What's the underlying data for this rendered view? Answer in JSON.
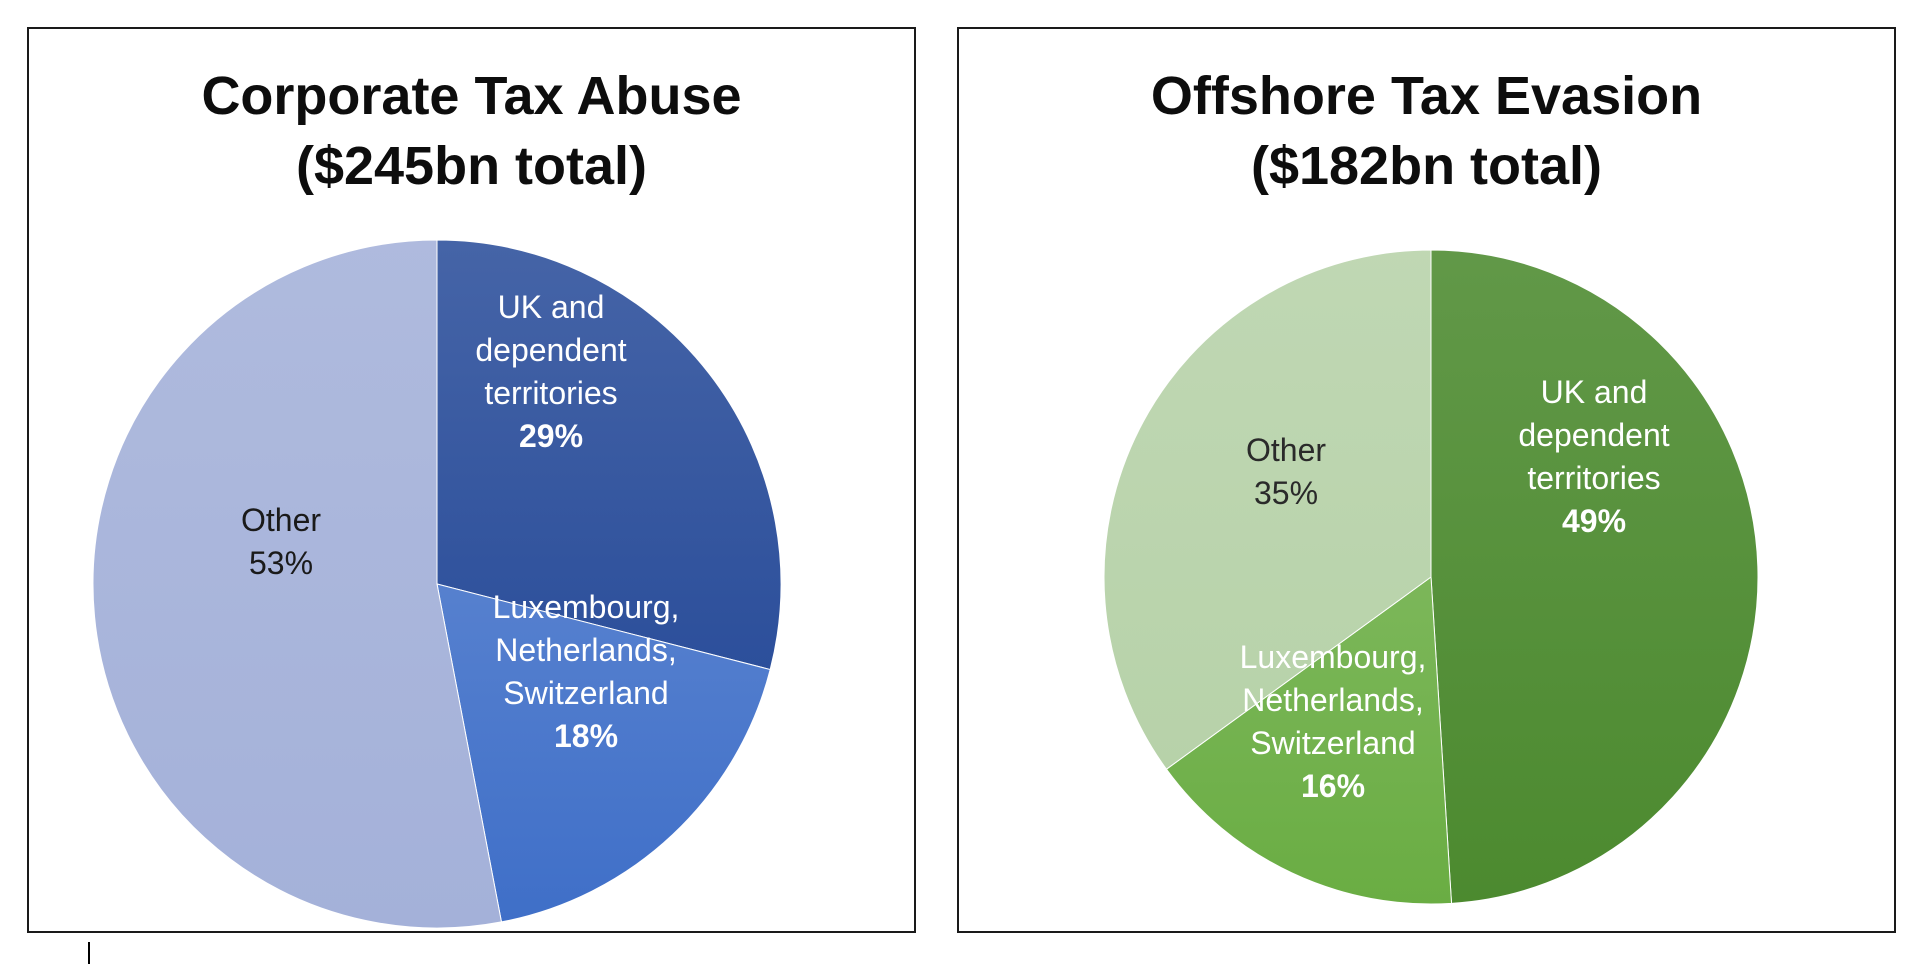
{
  "chart_data": [
    {
      "type": "pie",
      "title": "Corporate Tax Abuse",
      "subtitle": "($245bn total)",
      "slices": [
        {
          "label_lines": [
            "UK and",
            "dependent",
            "territories"
          ],
          "pct_label": "29%",
          "value": 29,
          "color": "#2c4f9b",
          "text_color": "#ffffff"
        },
        {
          "label_lines": [
            "Luxembourg,",
            "Netherlands,",
            "Switzerland"
          ],
          "pct_label": "18%",
          "value": 18,
          "color": "#3f6fc8",
          "text_color": "#ffffff"
        },
        {
          "label_lines": [
            "Other"
          ],
          "pct_label": "53%",
          "value": 53,
          "color": "#a4b1d9",
          "text_color": "#1a1a1a",
          "pct_normal": true
        }
      ]
    },
    {
      "type": "pie",
      "title": "Offshore Tax Evasion",
      "subtitle": "($182bn total)",
      "slices": [
        {
          "label_lines": [
            "UK and",
            "dependent",
            "territories"
          ],
          "pct_label": "49%",
          "value": 49,
          "color": "#4c8a2f",
          "text_color": "#ffffff"
        },
        {
          "label_lines": [
            "Luxembourg,",
            "Netherlands,",
            "Switzerland"
          ],
          "pct_label": "16%",
          "value": 16,
          "color": "#6aad43",
          "text_color": "#ffffff"
        },
        {
          "label_lines": [
            "Other"
          ],
          "pct_label": "35%",
          "value": 35,
          "color": "#b7d2a9",
          "text_color": "#2a2a2a",
          "pct_normal": true
        }
      ]
    }
  ]
}
